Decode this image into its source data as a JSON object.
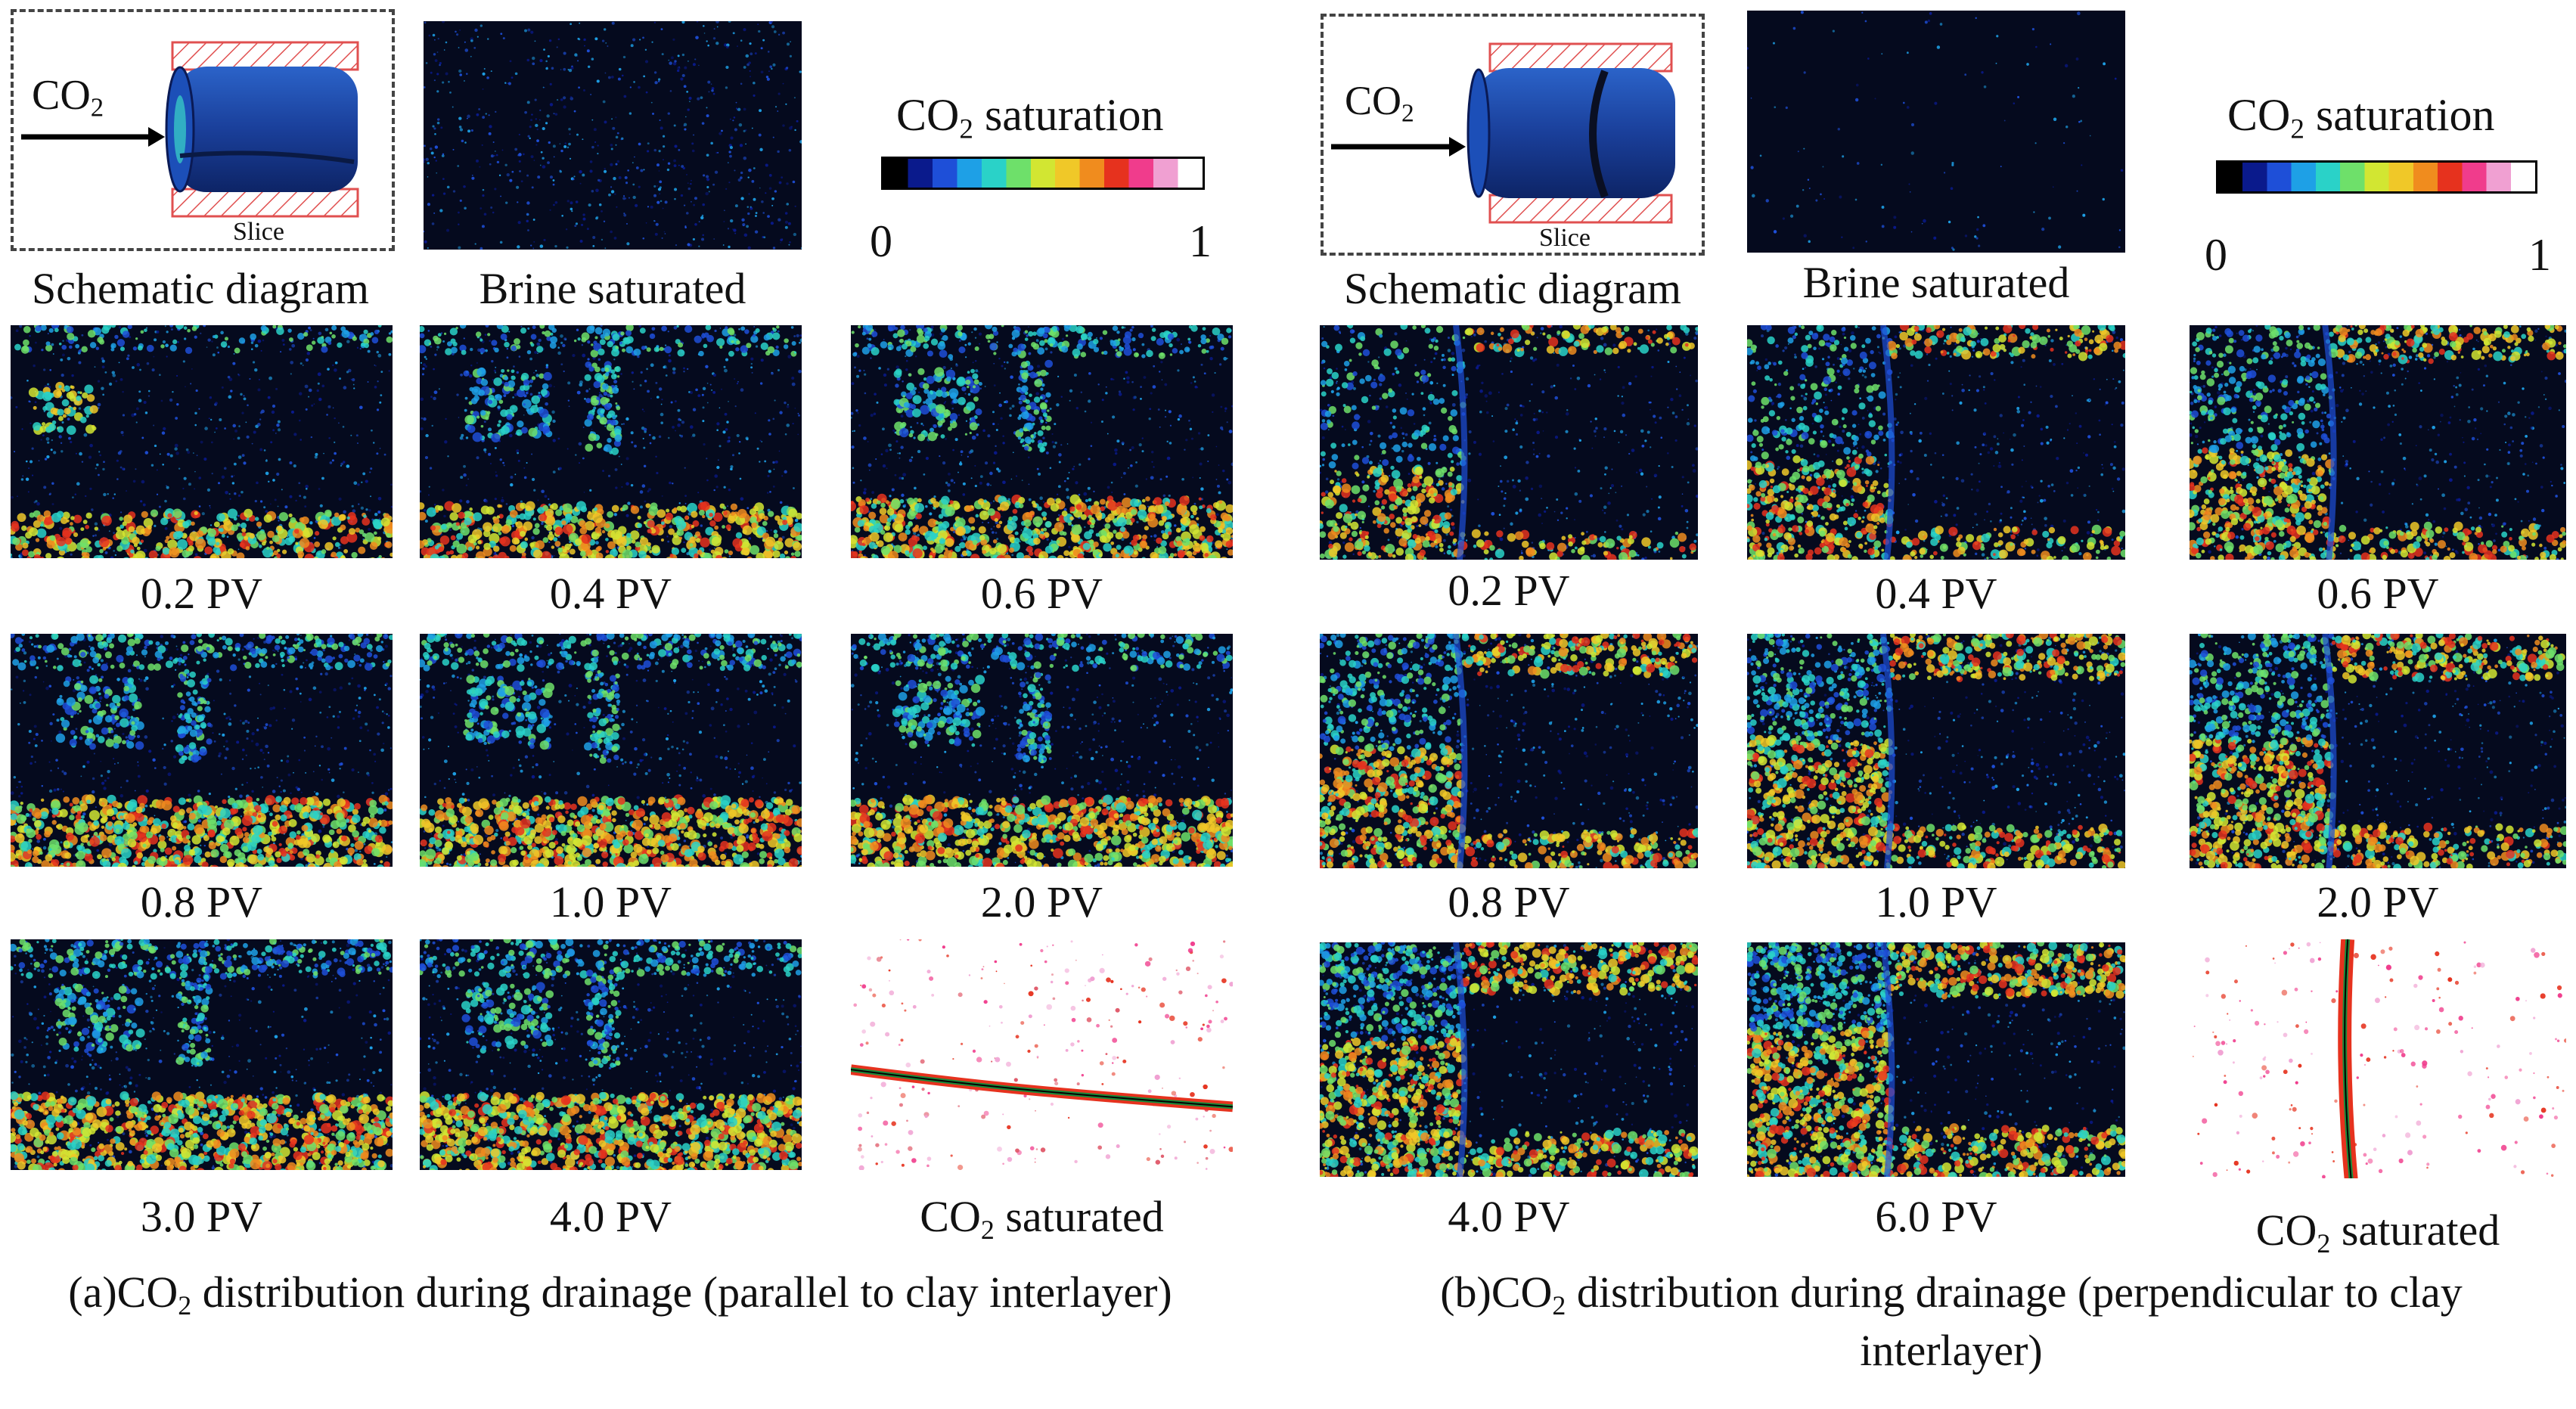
{
  "panel_a": {
    "schematic": {
      "gas_label": "CO",
      "gas_sub": "2",
      "slice_label": "Slice"
    },
    "top_captions": {
      "schematic": "Schematic diagram",
      "brine": "Brine saturated"
    },
    "colorbar": {
      "title_pre": "CO",
      "title_sub": "2",
      "title_post": " saturation",
      "min": "0",
      "max": "1"
    },
    "steps": [
      "0.2 PV",
      "0.4 PV",
      "0.6 PV",
      "0.8 PV",
      "1.0 PV",
      "2.0 PV",
      "3.0 PV",
      "4.0 PV"
    ],
    "final": {
      "pre": "CO",
      "sub": "2",
      "post": " saturated"
    },
    "caption": {
      "pre": "(a)CO",
      "sub": "2",
      "post": " distribution during drainage (parallel to clay interlayer)"
    }
  },
  "panel_b": {
    "schematic": {
      "gas_label": "CO",
      "gas_sub": "2",
      "slice_label": "Slice"
    },
    "top_captions": {
      "schematic": "Schematic diagram",
      "brine": "Brine saturated"
    },
    "colorbar": {
      "title_pre": "CO",
      "title_sub": "2",
      "title_post": " saturation",
      "min": "0",
      "max": "1"
    },
    "steps": [
      "0.2 PV",
      "0.4 PV",
      "0.6 PV",
      "0.8 PV",
      "1.0 PV",
      "2.0 PV",
      "4.0 PV",
      "6.0 PV"
    ],
    "final": {
      "pre": "CO",
      "sub": "2",
      "post": " saturated"
    },
    "caption": {
      "pre": "(b)CO",
      "sub": "2",
      "post": " distribution during drainage (perpendicular to clay interlayer)"
    }
  },
  "colors": {
    "background": "#050a1e",
    "colormap": [
      "#000000",
      "#0a1a8c",
      "#1e4fd8",
      "#1ea0e6",
      "#2ad2c8",
      "#6ee06a",
      "#d2e632",
      "#f0c828",
      "#f08c1e",
      "#e6321e",
      "#f03c8c",
      "#f0a0d2",
      "#ffffff"
    ]
  }
}
